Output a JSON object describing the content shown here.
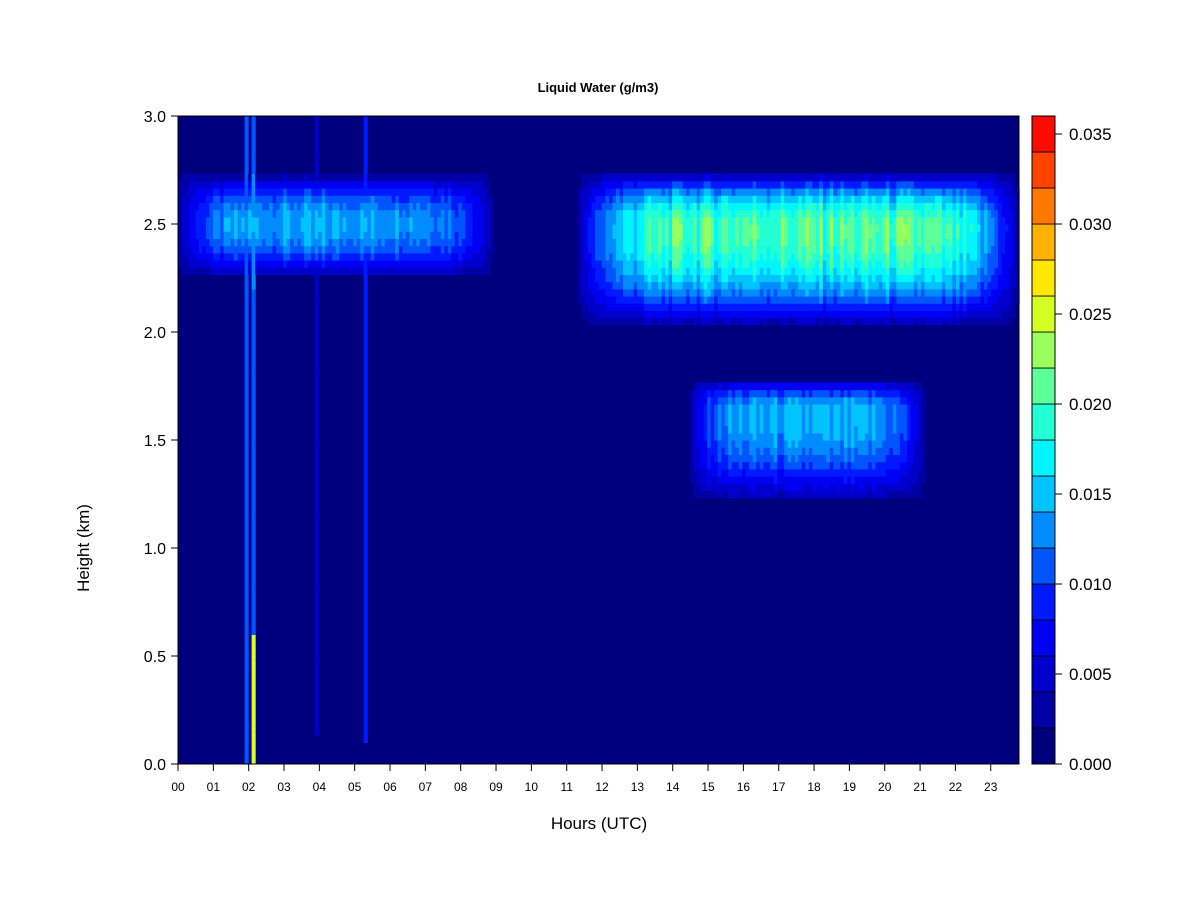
{
  "chart_data": {
    "type": "heatmap",
    "title": "Liquid Water (g/m3)",
    "xlabel": "Hours (UTC)",
    "ylabel": "Height (km)",
    "x_ticks": [
      "00",
      "01",
      "02",
      "03",
      "04",
      "05",
      "06",
      "07",
      "08",
      "09",
      "10",
      "11",
      "12",
      "13",
      "14",
      "15",
      "16",
      "17",
      "18",
      "19",
      "20",
      "21",
      "22",
      "23"
    ],
    "xlim": [
      0,
      23.8
    ],
    "ylim": [
      0,
      3.0
    ],
    "y_ticks": [
      "0.0",
      "0.5",
      "1.0",
      "1.5",
      "2.0",
      "2.5",
      "3.0"
    ],
    "colorbar": {
      "range": [
        0,
        0.036
      ],
      "ticks": [
        "0.000",
        "0.005",
        "0.010",
        "0.015",
        "0.020",
        "0.025",
        "0.030",
        "0.035"
      ],
      "levels": [
        0,
        0.002,
        0.004,
        0.006,
        0.008,
        0.01,
        0.012,
        0.014,
        0.016,
        0.018,
        0.02,
        0.022,
        0.024,
        0.026,
        0.028,
        0.03,
        0.032,
        0.034,
        0.036
      ],
      "colors": [
        "#00007F",
        "#0000A6",
        "#0000CC",
        "#0000F2",
        "#001AFF",
        "#0055FF",
        "#008CFF",
        "#00C3FF",
        "#00F6FF",
        "#23FFD4",
        "#5DFF99",
        "#99FF5D",
        "#D4FF23",
        "#FFE800",
        "#FFB100",
        "#FF7900",
        "#FF4200",
        "#FF0A00",
        "#C10000",
        "#7F0000"
      ]
    },
    "features": [
      {
        "type": "layer",
        "x0": 0.0,
        "x1": 8.9,
        "z0": 2.26,
        "z1": 2.73,
        "zc": 2.5,
        "peak": 0.0135
      },
      {
        "type": "layer",
        "x0": 11.3,
        "x1": 23.8,
        "z0": 2.03,
        "z1": 2.74,
        "zc": 2.48,
        "peak": 0.021
      },
      {
        "type": "layer",
        "x0": 14.5,
        "x1": 21.1,
        "z0": 1.22,
        "z1": 1.78,
        "zc": 1.63,
        "peak": 0.0135
      },
      {
        "type": "spike",
        "x": 2.15,
        "z0": 0.0,
        "z1": 3.0,
        "peak": 0.03
      },
      {
        "type": "spike",
        "x": 1.95,
        "z0": 0.0,
        "z1": 3.0,
        "peak": 0.012
      },
      {
        "type": "spike",
        "x": 3.95,
        "z0": 0.14,
        "z1": 3.0,
        "peak": 0.012
      },
      {
        "type": "spike",
        "x": 4.95,
        "z0": 0.5,
        "z1": 3.0,
        "peak": 0.011
      },
      {
        "type": "spike",
        "x": 5.15,
        "z0": 0.1,
        "z1": 3.0,
        "peak": 0.013
      },
      {
        "type": "spike",
        "x": 5.3,
        "z0": 0.1,
        "z1": 3.0,
        "peak": 0.01
      },
      {
        "type": "spike",
        "x": 6.05,
        "z0": 2.6,
        "z1": 3.0,
        "peak": 0.008
      }
    ]
  }
}
